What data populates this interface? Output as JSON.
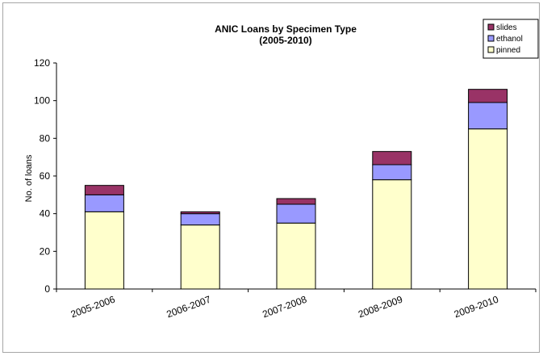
{
  "chart_data": {
    "type": "bar",
    "stacked": true,
    "title": "ANIC Loans by Specimen Type",
    "subtitle": "(2005-2010)",
    "xlabel": "",
    "ylabel": "No. of loans",
    "ylim": [
      0,
      120
    ],
    "yticks": [
      0,
      20,
      40,
      60,
      80,
      100,
      120
    ],
    "grid": false,
    "legend_position": "top-right",
    "categories": [
      "2005-2006",
      "2006-2007",
      "2007-2008",
      "2008-2009",
      "2009-2010"
    ],
    "series": [
      {
        "name": "pinned",
        "color": "#ffffcc",
        "values": [
          41,
          34,
          35,
          58,
          85
        ]
      },
      {
        "name": "ethanol",
        "color": "#9999ff",
        "values": [
          9,
          6,
          10,
          8,
          14
        ]
      },
      {
        "name": "slides",
        "color": "#993366",
        "values": [
          5,
          1,
          3,
          7,
          7
        ]
      }
    ]
  }
}
